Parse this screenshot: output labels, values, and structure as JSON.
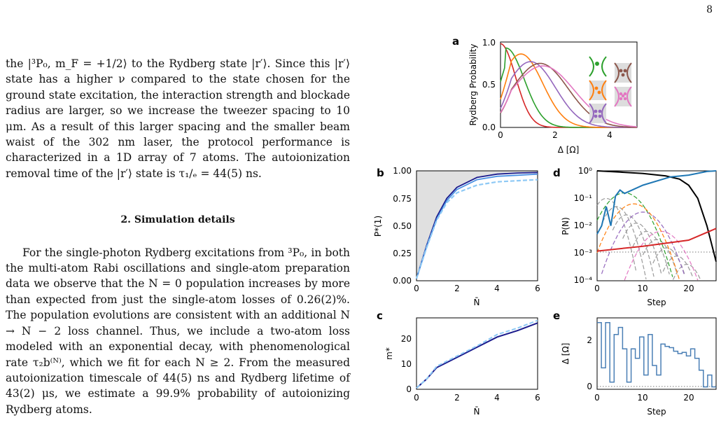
{
  "page_number": "8",
  "body": {
    "para1": "the |³P₀, m_F = +1/2⟩ to the Rydberg state |r′⟩. Since this |r′⟩ state has a higher ν compared to the state chosen for the ground state excitation, the interaction strength and blockade radius are larger, so we increase the tweezer spacing to 10 μm. As a result of this larger spacing and the smaller beam waist of the 302 nm laser, the protocol performance is characterized in a 1D array of 7 atoms. The autoionization removal time of the |r′⟩ state is τ₁/ₑ = 44(5) ns.",
    "section_heading": "2.   Simulation details",
    "para2": "For the single-photon Rydberg excitations from ³P₀, in both the multi-atom Rabi oscillations and single-atom preparation data we observe that the N = 0 population increases by more than expected from just the single-atom losses of 0.26(2)%. The population evolutions are consistent with an additional N → N − 2 loss channel. Thus, we include a two-atom loss modeled with an exponential decay, with phenomenological rate τ₂b⁽ᴺ⁾, which we fit for each N ≥ 2. From the measured autoionization timescale of 44(5) ns and Rydberg lifetime of 43(2) μs, we estimate a 99.9% probability of autoionizing Rydberg atoms."
  },
  "figure": {
    "panel_labels": [
      "a",
      "b",
      "c",
      "d",
      "e"
    ],
    "a": {
      "ylabel": "Rydberg Probability",
      "xlabel": "Δ [Ω]",
      "yticks": [
        "0.0",
        "0.5",
        "1.0"
      ],
      "xticks": [
        "0",
        "2",
        "4"
      ]
    },
    "b": {
      "ylabel": "P*(1)",
      "xlabel": "N̄",
      "yticks": [
        "0.00",
        "0.25",
        "0.50",
        "0.75",
        "1.00"
      ],
      "xticks": [
        "0",
        "2",
        "4",
        "6"
      ]
    },
    "c": {
      "ylabel": "m*",
      "xlabel": "N̄",
      "yticks": [
        "0",
        "10",
        "20"
      ],
      "xticks": [
        "0",
        "2",
        "4",
        "6"
      ]
    },
    "d": {
      "ylabel": "P(N)",
      "xlabel": "Step",
      "yticks": [
        "10⁰",
        "10⁻¹",
        "10⁻²",
        "10⁻³",
        "10⁻⁴"
      ],
      "xticks": [
        "0",
        "10",
        "20"
      ]
    },
    "e": {
      "ylabel": "Δ [Ω]",
      "xlabel": "Step",
      "yticks": [
        "0",
        "2"
      ],
      "xticks": [
        "0",
        "10",
        "20"
      ]
    }
  },
  "chart_data": [
    {
      "panel": "a",
      "type": "line",
      "xlim": [
        0,
        5
      ],
      "ylim": [
        0,
        1.0
      ],
      "series": [
        {
          "color": "#d62728",
          "peak_x": 0.0,
          "peak_y": 0.98
        },
        {
          "color": "#2ca02c",
          "peak_x": 0.2,
          "peak_y": 0.93
        },
        {
          "color": "#ff7f0e",
          "peak_x": 0.75,
          "peak_y": 0.86
        },
        {
          "color": "#9467bd",
          "peak_x": 1.1,
          "peak_y": 0.77
        },
        {
          "color": "#8c564b",
          "peak_x": 1.45,
          "peak_y": 0.75
        },
        {
          "color": "#e377c2",
          "peak_x": 1.55,
          "peak_y": 0.72
        }
      ]
    },
    {
      "panel": "b",
      "type": "line",
      "xlim": [
        0,
        6
      ],
      "ylim": [
        0,
        1.0
      ],
      "series": [
        {
          "color": "#1a1a8c",
          "style": "solid",
          "x": [
            0,
            0.5,
            1,
            1.5,
            2,
            3,
            4,
            5,
            6
          ],
          "y": [
            0.02,
            0.32,
            0.58,
            0.75,
            0.85,
            0.94,
            0.97,
            0.98,
            0.985
          ]
        },
        {
          "color": "#4a90e2",
          "style": "solid",
          "x": [
            0,
            0.5,
            1,
            1.5,
            2,
            3,
            4,
            5,
            6
          ],
          "y": [
            0.02,
            0.31,
            0.56,
            0.73,
            0.83,
            0.92,
            0.95,
            0.96,
            0.97
          ]
        },
        {
          "color": "#8ec9f5",
          "style": "dashed",
          "x": [
            0,
            0.5,
            1,
            1.5,
            2,
            3,
            4,
            5,
            6
          ],
          "y": [
            0.02,
            0.3,
            0.55,
            0.71,
            0.8,
            0.87,
            0.9,
            0.91,
            0.92
          ]
        }
      ]
    },
    {
      "panel": "c",
      "type": "line",
      "xlim": [
        0,
        6
      ],
      "ylim": [
        0,
        28
      ],
      "series": [
        {
          "color": "#1a1a8c",
          "style": "solid",
          "x": [
            0,
            0.5,
            1,
            2,
            3,
            4,
            5,
            6
          ],
          "y": [
            0.5,
            4,
            8.5,
            12.5,
            16.5,
            20.5,
            23,
            26
          ]
        },
        {
          "color": "#8ec9f5",
          "style": "dashed",
          "x": [
            0,
            0.5,
            1,
            2,
            3,
            4,
            5,
            6
          ],
          "y": [
            0.5,
            4,
            9,
            13,
            17,
            21.5,
            24,
            27
          ]
        }
      ]
    },
    {
      "panel": "d",
      "type": "line",
      "xlim": [
        0,
        26
      ],
      "yscale": "log",
      "ylim": [
        0.0001,
        1
      ],
      "series": [
        {
          "color": "#000000",
          "x": [
            0,
            5,
            10,
            15,
            18,
            20,
            22,
            24,
            26
          ],
          "y": [
            1,
            0.9,
            0.8,
            0.65,
            0.5,
            0.3,
            0.1,
            0.01,
            0.0005
          ]
        },
        {
          "color": "#1f77b4",
          "x": [
            0,
            1,
            2,
            3,
            4,
            5,
            6,
            10,
            16,
            20,
            24,
            26
          ],
          "y": [
            0.005,
            0.01,
            0.05,
            0.01,
            0.12,
            0.2,
            0.15,
            0.3,
            0.6,
            0.7,
            0.95,
            1
          ]
        },
        {
          "color": "#d62728",
          "x": [
            0,
            10,
            20,
            26
          ],
          "y": [
            0.0012,
            0.0018,
            0.003,
            0.008
          ]
        }
      ]
    },
    {
      "panel": "e",
      "type": "line",
      "xlim": [
        0,
        26
      ],
      "ylim": [
        0,
        3
      ],
      "series": [
        {
          "color": "#4a7fb5",
          "step": true,
          "y": [
            2.8,
            0.9,
            2.8,
            0.3,
            2.3,
            2.6,
            1.7,
            0.3,
            1.7,
            1.3,
            2.2,
            0.6,
            2.3,
            1.0,
            0.6,
            1.9,
            1.8,
            1.75,
            1.6,
            1.5,
            1.55,
            1.4,
            1.7,
            1.3,
            0.8,
            0.1,
            0.6,
            0.1
          ]
        }
      ]
    }
  ]
}
